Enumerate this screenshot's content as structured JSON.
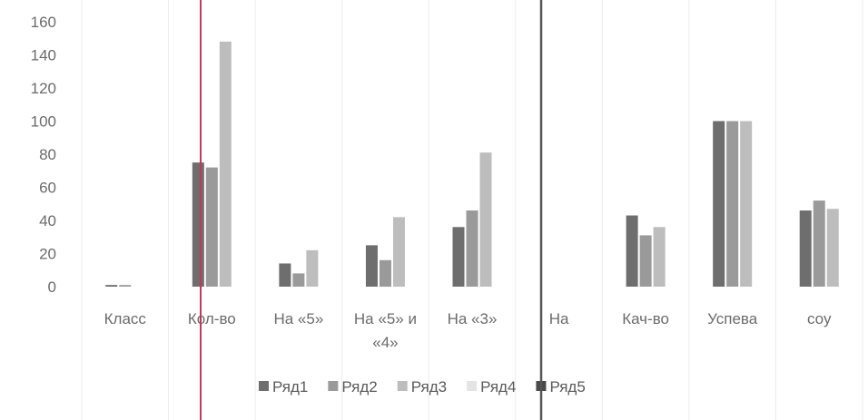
{
  "chart_data": {
    "type": "bar",
    "ylim": [
      0,
      160
    ],
    "yticks": [
      0,
      20,
      40,
      60,
      80,
      100,
      120,
      140,
      160
    ],
    "grid": false,
    "legend_position": "bottom",
    "categories": [
      [
        "Класс"
      ],
      [
        "Кол-во"
      ],
      [
        "На «5»"
      ],
      [
        "На «5» и",
        "«4»"
      ],
      [
        "На «3»"
      ],
      [
        "На"
      ],
      [
        "Кач-во"
      ],
      [
        "Успева"
      ],
      [
        "соу"
      ]
    ],
    "series": [
      {
        "name": "Ряд1",
        "color": "#6e6e6e",
        "values": [
          1,
          75,
          14,
          25,
          36,
          0,
          43,
          100,
          46
        ]
      },
      {
        "name": "Ряд2",
        "color": "#9a9a9a",
        "values": [
          1,
          72,
          8,
          16,
          46,
          0,
          31,
          100,
          52
        ]
      },
      {
        "name": "Ряд3",
        "color": "#bdbdbd",
        "values": [
          0,
          148,
          22,
          42,
          81,
          0,
          36,
          100,
          47
        ]
      },
      {
        "name": "Ряд4",
        "color": "#e4e4e4",
        "values": [
          0,
          0,
          0,
          0,
          0,
          0,
          0,
          0,
          0
        ]
      },
      {
        "name": "Ряд5",
        "color": "#4a4a4a",
        "values": [
          0,
          0,
          0,
          0,
          0,
          0,
          0,
          0,
          0
        ]
      }
    ]
  }
}
